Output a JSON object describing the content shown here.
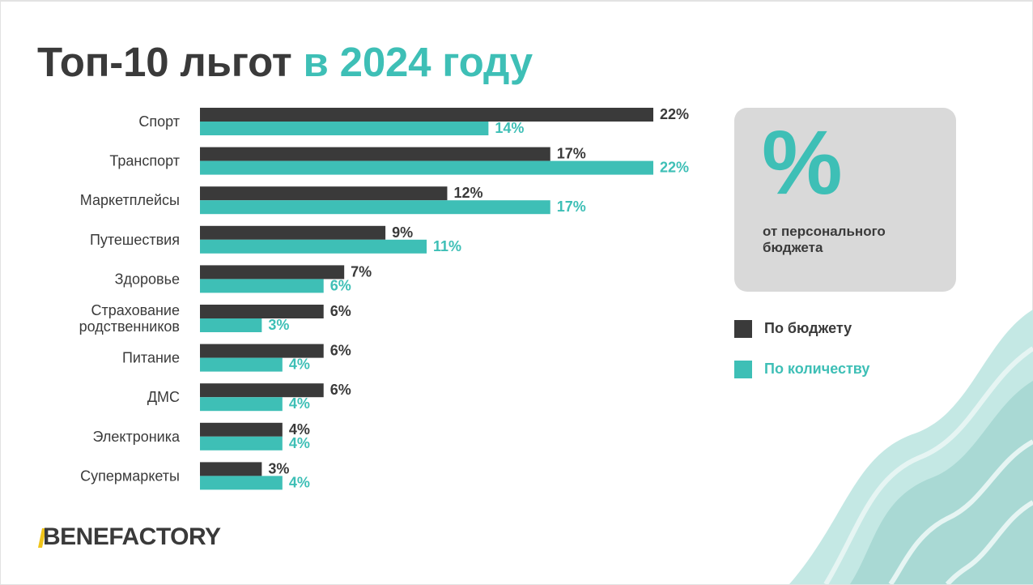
{
  "title": {
    "main": "Топ-10 льгот",
    "accent": "в 2024 году"
  },
  "colors": {
    "budget": "#3a3a3a",
    "count": "#3ebfb6",
    "panel": "#d9d9d9",
    "logo_accent": "#f0c419"
  },
  "panel": {
    "symbol": "%",
    "caption": "от персонального бюджета"
  },
  "legend": {
    "budget_label": "По бюджету",
    "count_label": "По количеству"
  },
  "logo": {
    "text": "BENEFACTORY"
  },
  "chart_data": {
    "type": "bar",
    "orientation": "horizontal",
    "unit": "%",
    "categories": [
      [
        "Спорт"
      ],
      [
        "Транспорт"
      ],
      [
        "Маркетплейсы"
      ],
      [
        "Путешествия"
      ],
      [
        "Здоровье"
      ],
      [
        "Страхование",
        "родственников"
      ],
      [
        "Питание"
      ],
      [
        "ДМС"
      ],
      [
        "Электроника"
      ],
      [
        "Супермаркеты"
      ]
    ],
    "series": [
      {
        "name": "По бюджету",
        "color": "#3a3a3a",
        "values": [
          22,
          17,
          12,
          9,
          7,
          6,
          6,
          6,
          4,
          3
        ]
      },
      {
        "name": "По количеству",
        "color": "#3ebfb6",
        "values": [
          14,
          22,
          17,
          11,
          6,
          3,
          4,
          4,
          4,
          4
        ]
      }
    ],
    "xlim": [
      0,
      22
    ],
    "grid": false,
    "legend_position": "right"
  }
}
